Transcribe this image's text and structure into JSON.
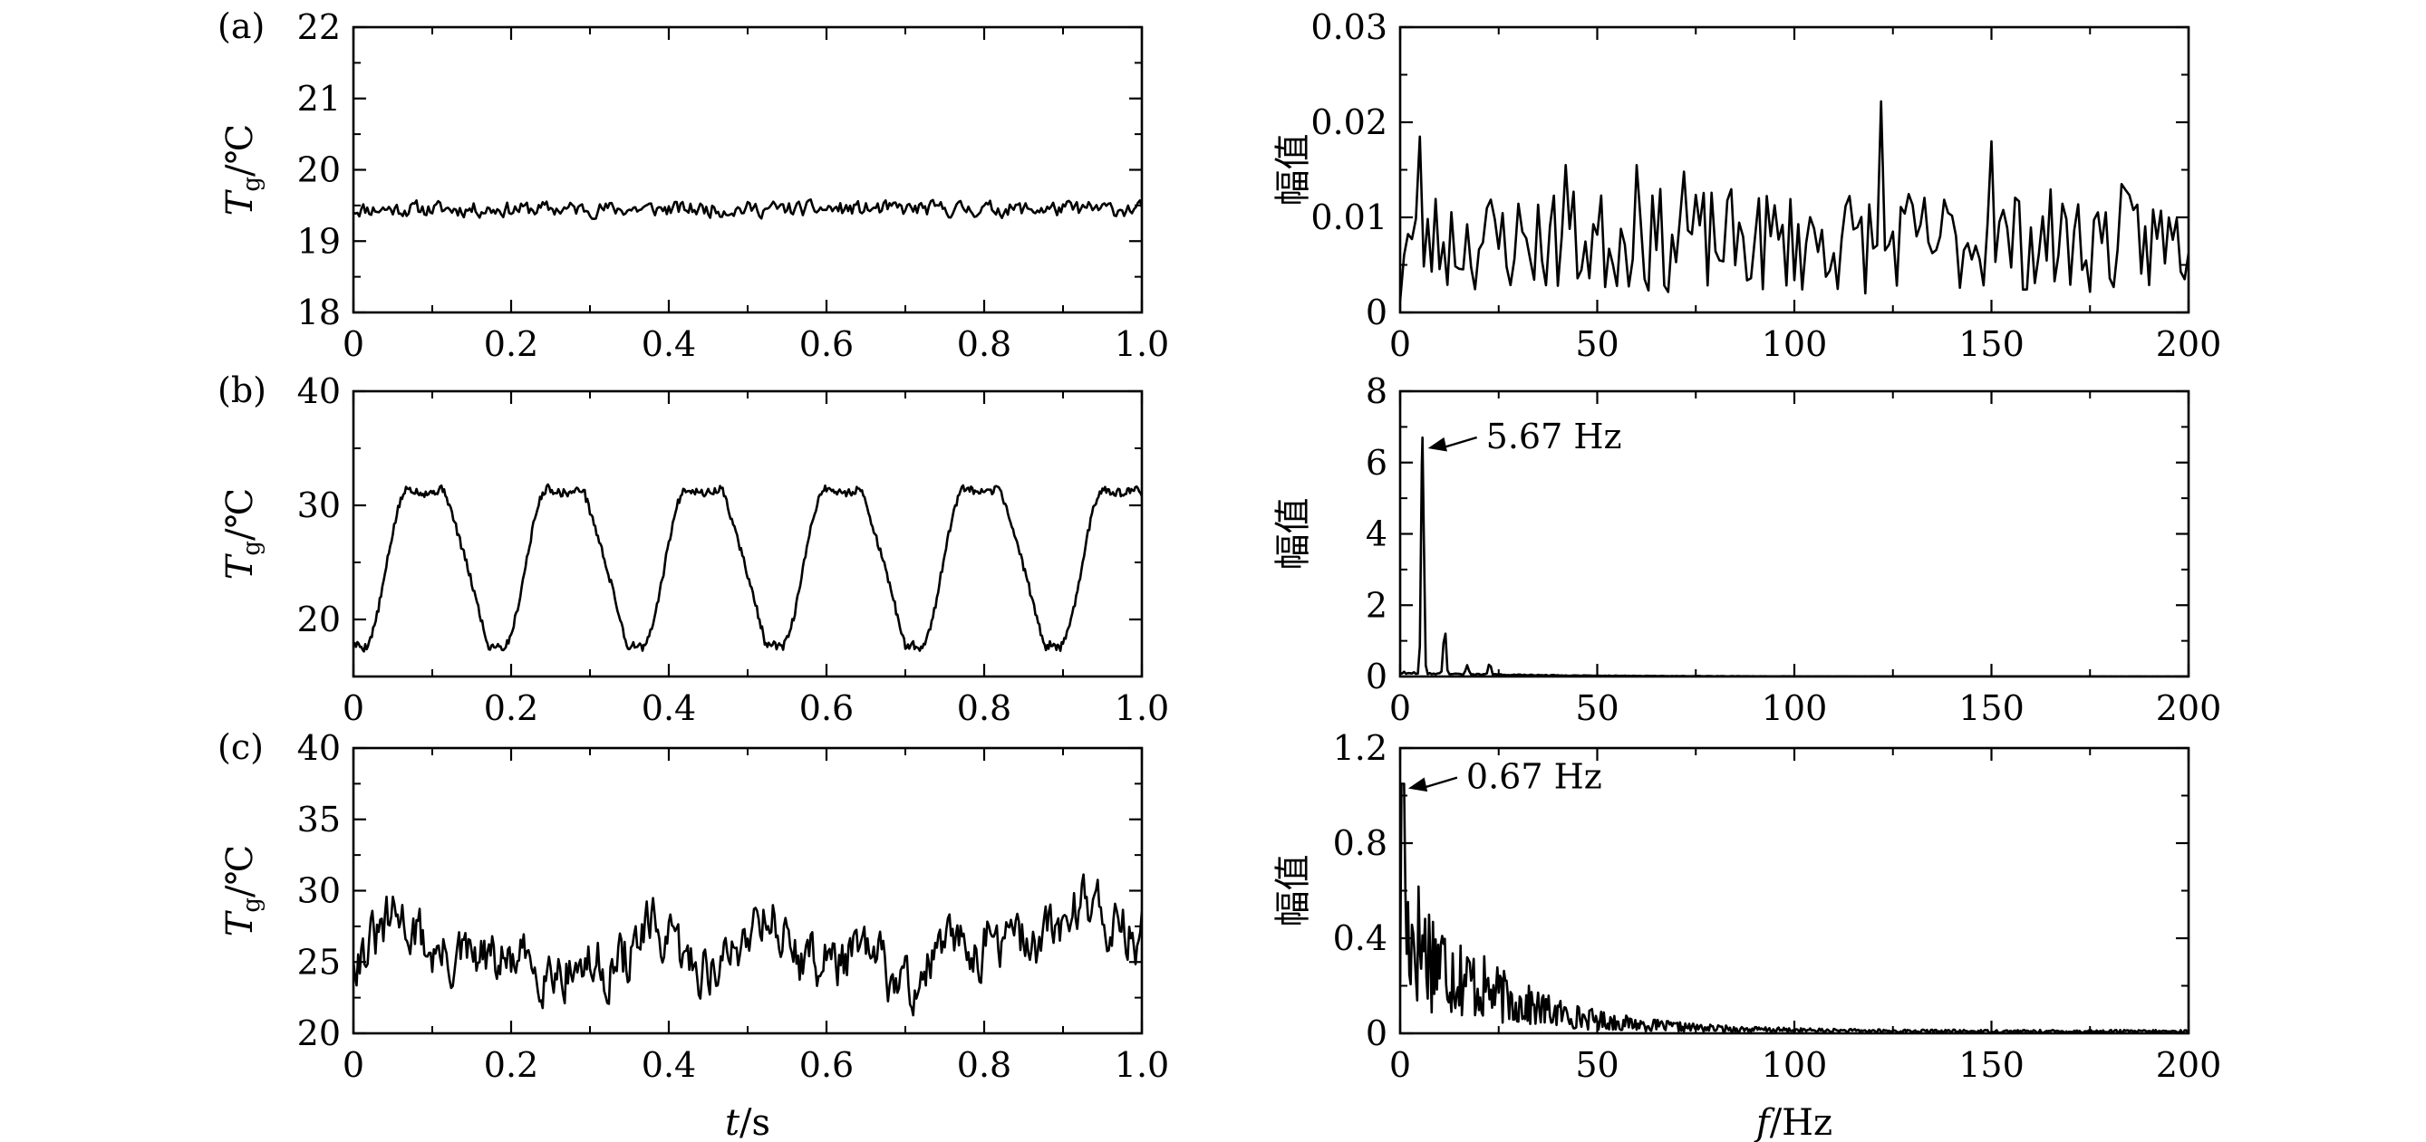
{
  "colors": {
    "line": "#000000",
    "background": "#ffffff"
  },
  "chart_data": [
    {
      "id": "a-time",
      "type": "line",
      "panel_label": "(a)",
      "ylabel": "T",
      "ylabel_sub": "g",
      "ylabel_unit": "/℃",
      "xlim": [
        0,
        1.0
      ],
      "ylim": [
        18,
        22
      ],
      "xticks": [
        0,
        0.2,
        0.4,
        0.6,
        0.8,
        1.0
      ],
      "xtick_labels": [
        "0",
        "0.2",
        "0.4",
        "0.6",
        "0.8",
        "1.0"
      ],
      "yticks": [
        18,
        19,
        20,
        21,
        22
      ],
      "ytick_labels": [
        "18",
        "19",
        "20",
        "21",
        "22"
      ],
      "signal": {
        "kind": "noise",
        "n": 400,
        "mean": 19.45,
        "amp": 0.16,
        "seed": 11
      }
    },
    {
      "id": "a-freq",
      "type": "line",
      "ylabel": "幅值",
      "xlim": [
        0,
        200
      ],
      "ylim": [
        0,
        0.03
      ],
      "xticks": [
        0,
        50,
        100,
        150,
        200
      ],
      "xtick_labels": [
        "0",
        "50",
        "100",
        "150",
        "200"
      ],
      "yticks": [
        0,
        0.01,
        0.02,
        0.03
      ],
      "ytick_labels": [
        "0",
        "0.01",
        "0.02",
        "0.03"
      ],
      "signal": {
        "kind": "spectrum-flat",
        "n": 200,
        "base": 0.0075,
        "amp": 0.0055,
        "seed": 23,
        "peaks": [
          [
            5,
            0.0185
          ],
          [
            42,
            0.0155
          ],
          [
            60,
            0.0155
          ],
          [
            72,
            0.0148
          ],
          [
            122,
            0.0222
          ],
          [
            150,
            0.018
          ],
          [
            183,
            0.0135
          ]
        ]
      }
    },
    {
      "id": "b-time",
      "type": "line",
      "panel_label": "(b)",
      "ylabel": "T",
      "ylabel_sub": "g",
      "ylabel_unit": "/℃",
      "xlim": [
        0,
        1.0
      ],
      "ylim": [
        15,
        40
      ],
      "xticks": [
        0,
        0.2,
        0.4,
        0.6,
        0.8,
        1.0
      ],
      "xtick_labels": [
        "0",
        "0.2",
        "0.4",
        "0.6",
        "0.8",
        "1.0"
      ],
      "yticks": [
        20,
        30,
        40
      ],
      "ytick_labels": [
        "20",
        "30",
        "40"
      ],
      "signal": {
        "kind": "periodic",
        "n": 600,
        "freq": 5.67,
        "low": 17.5,
        "high": 31.5,
        "noise": 0.35,
        "seed": 5
      }
    },
    {
      "id": "b-freq",
      "type": "line",
      "ylabel": "幅值",
      "xlim": [
        0,
        200
      ],
      "ylim": [
        0,
        8
      ],
      "xticks": [
        0,
        50,
        100,
        150,
        200
      ],
      "xtick_labels": [
        "0",
        "50",
        "100",
        "150",
        "200"
      ],
      "yticks": [
        0,
        2,
        4,
        6,
        8
      ],
      "ytick_labels": [
        "0",
        "2",
        "4",
        "6",
        "8"
      ],
      "signal": {
        "kind": "spectrum-peak",
        "n": 400,
        "peaks": [
          [
            5.67,
            6.7
          ],
          [
            11.3,
            1.35
          ],
          [
            17,
            0.25
          ],
          [
            22.7,
            0.35
          ]
        ],
        "floor": 0.08,
        "seed": 9
      },
      "annotation": {
        "text": "5.67 Hz",
        "x": 5.67,
        "y": 6.4
      }
    },
    {
      "id": "c-time",
      "type": "line",
      "panel_label": "(c)",
      "ylabel": "T",
      "ylabel_sub": "g",
      "ylabel_unit": "/℃",
      "xlim": [
        0,
        1.0
      ],
      "ylim": [
        20,
        40
      ],
      "xticks": [
        0,
        0.2,
        0.4,
        0.6,
        0.8,
        1.0
      ],
      "xtick_labels": [
        "0",
        "0.2",
        "0.4",
        "0.6",
        "0.8",
        "1.0"
      ],
      "yticks": [
        20,
        25,
        30,
        35,
        40
      ],
      "ytick_labels": [
        "20",
        "25",
        "30",
        "35",
        "40"
      ],
      "xlabel": "t",
      "xlabel_unit": "/s",
      "signal": {
        "kind": "noise-drift",
        "n": 500,
        "mean": 25.8,
        "amp": 2.2,
        "seed": 31,
        "bumps": [
          [
            0.06,
            2.5
          ],
          [
            0.38,
            2.5
          ],
          [
            0.52,
            3.8
          ],
          [
            0.7,
            -2.5
          ],
          [
            0.93,
            2.8
          ]
        ]
      }
    },
    {
      "id": "c-freq",
      "type": "line",
      "ylabel": "幅值",
      "xlim": [
        0,
        200
      ],
      "ylim": [
        0,
        1.2
      ],
      "xticks": [
        0,
        50,
        100,
        150,
        200
      ],
      "xtick_labels": [
        "0",
        "50",
        "100",
        "150",
        "200"
      ],
      "yticks": [
        0,
        0.4,
        0.8,
        1.2
      ],
      "ytick_labels": [
        "0",
        "0.4",
        "0.8",
        "1.2"
      ],
      "xlabel": "f",
      "xlabel_unit": "/Hz",
      "signal": {
        "kind": "spectrum-decay",
        "n": 600,
        "start": 1.05,
        "decay": 22,
        "noise": 0.75,
        "seed": 17
      },
      "annotation": {
        "text": "0.67 Hz",
        "x": 0.67,
        "y": 1.03
      }
    }
  ]
}
